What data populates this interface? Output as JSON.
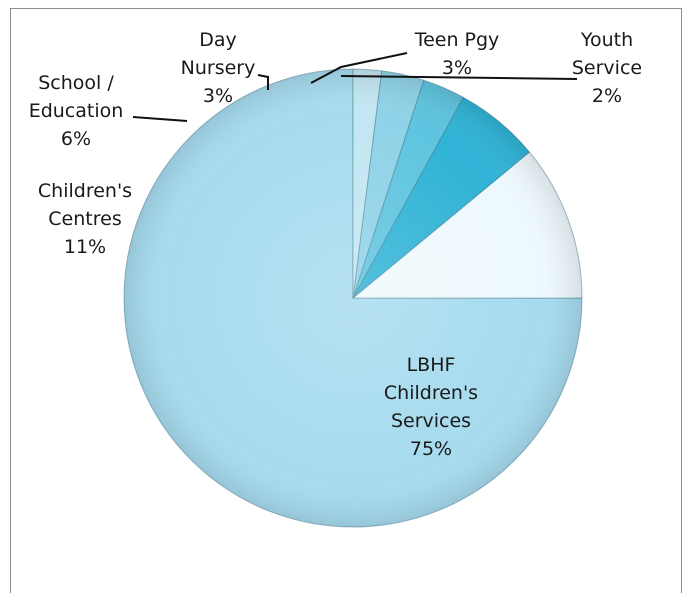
{
  "chart_data": {
    "type": "pie",
    "title": "",
    "start_angle_deg": 0,
    "direction": "clockwise",
    "slices": [
      {
        "name": "LBHF Children's Services",
        "label_lines": [
          "LBHF",
          "Children's",
          "Services",
          "75%"
        ],
        "value": 75,
        "label": "75%",
        "color": "#a6dbee"
      },
      {
        "name": "Children's Centres",
        "label_lines": [
          "Children's",
          "Centres",
          "11%"
        ],
        "value": 11,
        "label": "11%",
        "color": "#eef9fd"
      },
      {
        "name": "School / Education",
        "label_lines": [
          "School /",
          "Education",
          "6%"
        ],
        "value": 6,
        "label": "6%",
        "color": "#2fb3d6"
      },
      {
        "name": "Day Nursery",
        "label_lines": [
          "Day",
          "Nursery",
          "3%"
        ],
        "value": 3,
        "label": "3%",
        "color": "#5ec4df"
      },
      {
        "name": "Teen Pgy",
        "label_lines": [
          "Teen Pgy",
          "3%"
        ],
        "value": 3,
        "label": "3%",
        "color": "#8fd2e7"
      },
      {
        "name": "Youth Service",
        "label_lines": [
          "Youth",
          "Service",
          "2%"
        ],
        "value": 2,
        "label": "2%",
        "color": "#c2e6f2"
      }
    ],
    "legend": "none",
    "data_labels": "category name and percentage with leader lines"
  }
}
